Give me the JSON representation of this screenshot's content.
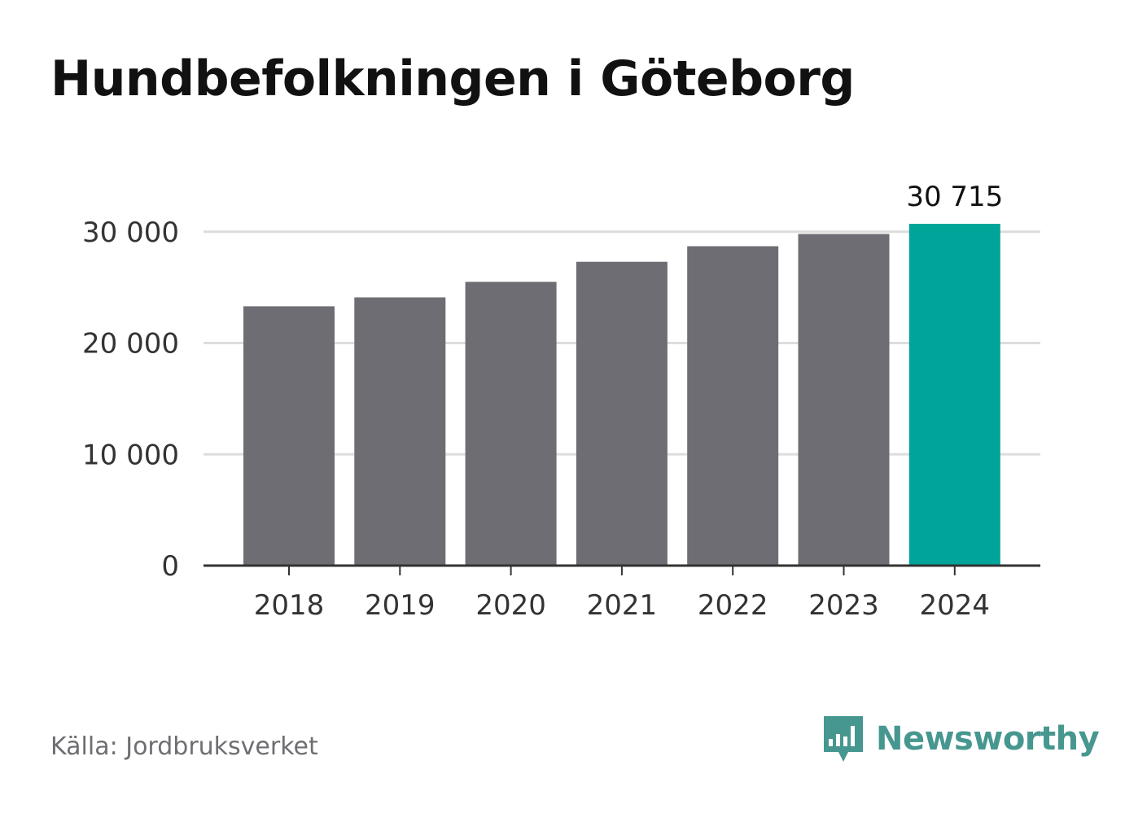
{
  "title": "Hundbefolkningen i Göteborg",
  "source": "Källa: Jordbruksverket",
  "logo": {
    "text": "Newsworthy",
    "icon": "bar-chart-speech-bubble-icon",
    "color": "#46978f"
  },
  "colors": {
    "bar": "#6e6d73",
    "highlight": "#00a499",
    "grid": "#dddddd",
    "axis": "#333333"
  },
  "chart_data": {
    "type": "bar",
    "categories": [
      "2018",
      "2019",
      "2020",
      "2021",
      "2022",
      "2023",
      "2024"
    ],
    "values": [
      23300,
      24100,
      25500,
      27300,
      28700,
      29800,
      30715
    ],
    "highlight_index": 6,
    "data_labels": [
      "",
      "",
      "",
      "",
      "",
      "",
      "30 715"
    ],
    "yticks": [
      0,
      10000,
      20000,
      30000
    ],
    "ytick_labels": [
      "0",
      "10 000",
      "20 000",
      "30 000"
    ],
    "ylim": [
      0,
      30715
    ],
    "xlabel": "",
    "ylabel": "",
    "grid": true,
    "legend": "none"
  }
}
